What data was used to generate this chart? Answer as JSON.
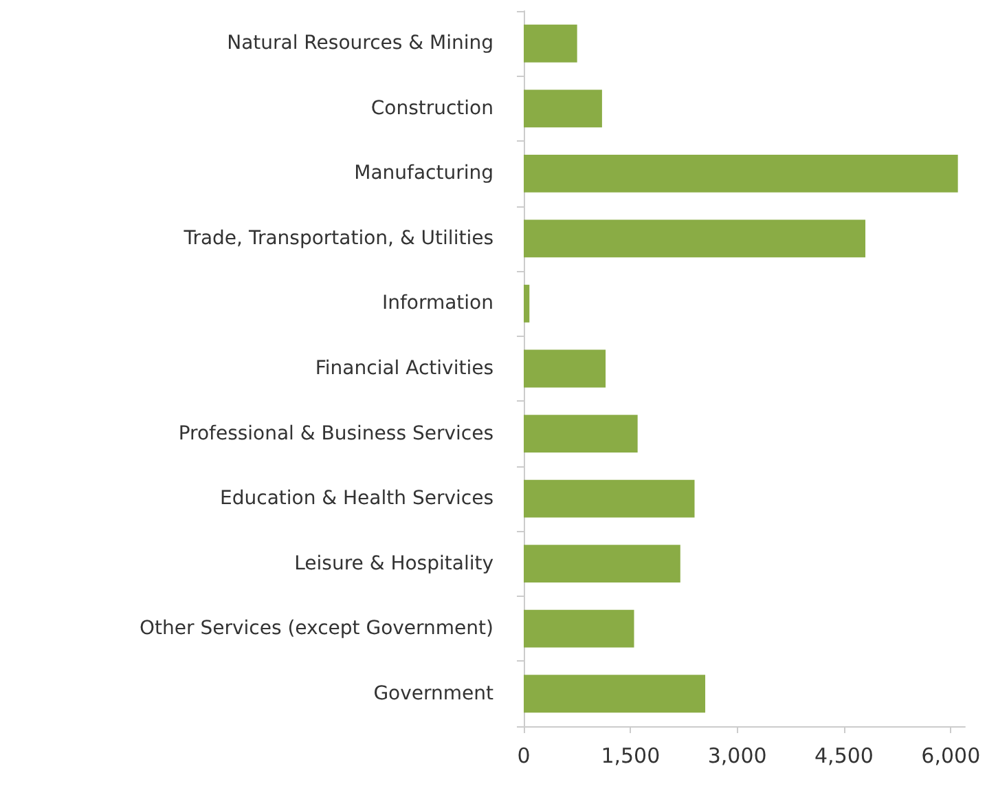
{
  "chart_data": {
    "type": "bar",
    "orientation": "horizontal",
    "categories": [
      "Natural Resources & Mining",
      "Construction",
      "Manufacturing",
      "Trade, Transportation, & Utilities",
      "Information",
      "Financial Activities",
      "Professional & Business Services",
      "Education & Health Services",
      "Leisure & Hospitality",
      "Other Services (except Government)",
      "Government"
    ],
    "values": [
      750,
      1100,
      6100,
      4800,
      80,
      1150,
      1600,
      2400,
      2200,
      1550,
      2550
    ],
    "color": "#8aac45",
    "xlim": [
      0,
      6200
    ],
    "xticks": [
      0,
      {
        "value": 1500,
        "label": "1,500"
      },
      {
        "value": 3000,
        "label": "3,000"
      },
      {
        "value": 4500,
        "label": "4,500"
      },
      {
        "value": 6000,
        "label": "6,000"
      }
    ],
    "grid": false
  }
}
